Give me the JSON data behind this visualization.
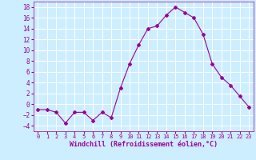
{
  "x": [
    0,
    1,
    2,
    3,
    4,
    5,
    6,
    7,
    8,
    9,
    10,
    11,
    12,
    13,
    14,
    15,
    16,
    17,
    18,
    19,
    20,
    21,
    22,
    23
  ],
  "y": [
    -1,
    -1,
    -1.5,
    -3.5,
    -1.5,
    -1.5,
    -3,
    -1.5,
    -2.5,
    3,
    7.5,
    11,
    14,
    14.5,
    16.5,
    18,
    17,
    16,
    13,
    7.5,
    5,
    3.5,
    1.5,
    -0.5
  ],
  "line_color": "#990099",
  "marker": "D",
  "marker_size": 2,
  "bg_color": "#cceeff",
  "grid_color": "#ffffff",
  "xlabel": "Windchill (Refroidissement éolien,°C)",
  "xlabel_color": "#990099",
  "tick_color": "#990099",
  "xlim": [
    -0.5,
    23.5
  ],
  "ylim": [
    -5,
    19
  ],
  "yticks": [
    -4,
    -2,
    0,
    2,
    4,
    6,
    8,
    10,
    12,
    14,
    16,
    18
  ],
  "xticks": [
    0,
    1,
    2,
    3,
    4,
    5,
    6,
    7,
    8,
    9,
    10,
    11,
    12,
    13,
    14,
    15,
    16,
    17,
    18,
    19,
    20,
    21,
    22,
    23
  ]
}
